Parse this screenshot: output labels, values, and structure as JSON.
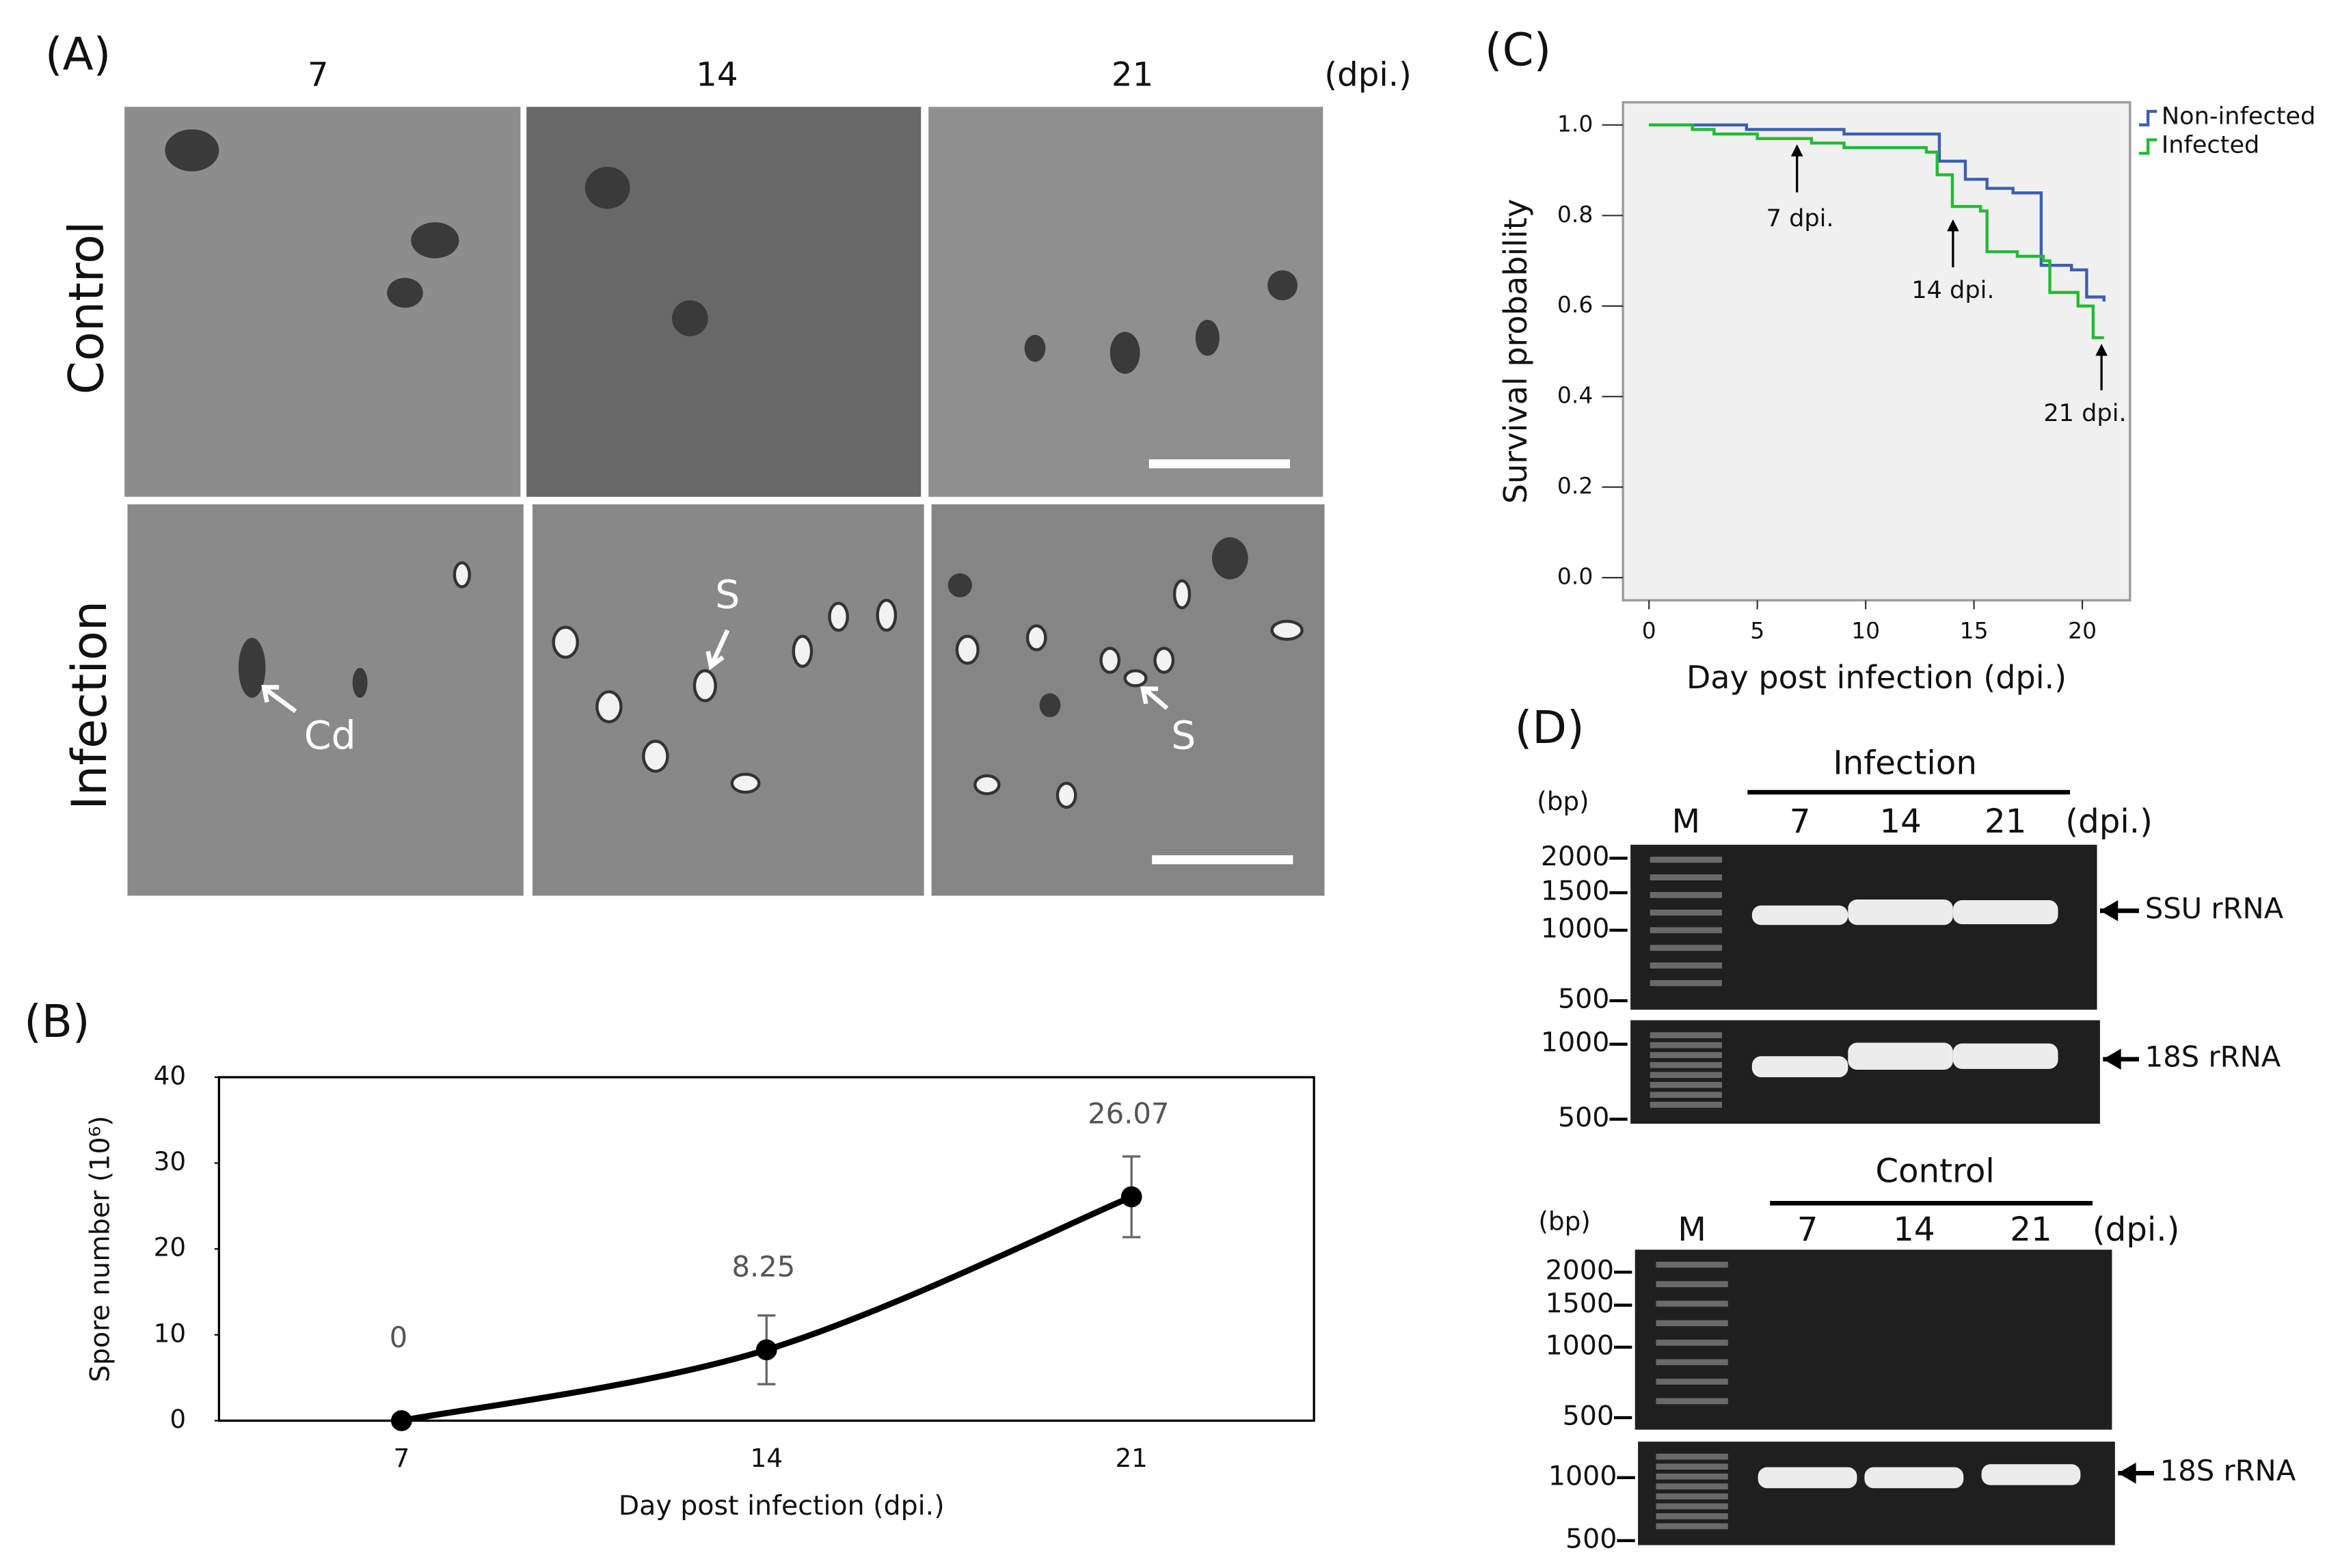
{
  "figure": {
    "panel_a": {
      "label": "(A)",
      "columns": [
        "7",
        "14",
        "21"
      ],
      "column_unit": "(dpi.)",
      "rows": [
        "Control",
        "Infection"
      ],
      "annotations": [
        "Cd",
        "S",
        "S"
      ]
    },
    "panel_d": {
      "label": "(D)",
      "gels": [
        {
          "title": "Infection",
          "unit": "(bp)",
          "lanes": [
            "M",
            "7",
            "14",
            "21"
          ],
          "lane_unit": "(dpi.)",
          "markers_top": [
            "2000",
            "1500",
            "1000",
            "500"
          ],
          "markers_bottom": [
            "1000",
            "500"
          ],
          "targets": [
            "SSU rRNA",
            "18S rRNA"
          ]
        },
        {
          "title": "Control",
          "unit": "(bp)",
          "lanes": [
            "M",
            "7",
            "14",
            "21"
          ],
          "lane_unit": "(dpi.)",
          "markers_top": [
            "2000",
            "1500",
            "1000",
            "500"
          ],
          "markers_bottom": [
            "1000",
            "500"
          ],
          "targets": [
            "18S rRNA"
          ]
        }
      ]
    }
  },
  "chart_data": [
    {
      "type": "line",
      "panel_label": "(B)",
      "x_label": "Day post infection (dpi.)",
      "y_label": "Spore number (10⁶)",
      "categories": [
        "7",
        "14",
        "21"
      ],
      "values": [
        0,
        8.25,
        26.07
      ],
      "errors": [
        0,
        4,
        4.7
      ],
      "color": "#000000",
      "ylim": [
        0,
        40
      ],
      "yticks": [
        0,
        10,
        20,
        30,
        40
      ],
      "grid": false
    },
    {
      "type": "step",
      "panel_label": "(C)",
      "x_label": "Day post infection (dpi.)",
      "y_label": "Survival probability",
      "xlim": [
        -1.2,
        22.2
      ],
      "ylim": [
        -0.05,
        1.05
      ],
      "xticks": [
        0,
        5,
        10,
        15,
        20
      ],
      "yticks": [
        {
          "value": 0,
          "label": "0.0"
        },
        0.2,
        0.4,
        0.6,
        0.8,
        {
          "value": 1,
          "label": "1.0"
        }
      ],
      "legend": "top-right",
      "grid": false,
      "annotations": [
        "7 dpi.",
        "14 dpi.",
        "21 dpi."
      ],
      "series": [
        {
          "name": "Non-infected",
          "color": "#3b5fb5",
          "x": [
            0,
            4.5,
            9,
            13.4,
            14.6,
            15.6,
            16.8,
            18.1,
            19.5,
            20.2,
            21
          ],
          "values": [
            1.0,
            0.99,
            0.98,
            0.92,
            0.88,
            0.86,
            0.85,
            0.69,
            0.68,
            0.62,
            0.61
          ]
        },
        {
          "name": "Infected",
          "color": "#22bb33",
          "x": [
            0,
            2,
            3,
            5,
            7.5,
            9,
            12.8,
            13.3,
            14,
            15.3,
            15.6,
            17,
            18.2,
            18.5,
            19.8,
            20.5,
            21
          ],
          "values": [
            1.0,
            0.99,
            0.98,
            0.97,
            0.96,
            0.95,
            0.94,
            0.89,
            0.82,
            0.81,
            0.72,
            0.71,
            0.7,
            0.63,
            0.6,
            0.53,
            0.53
          ]
        }
      ]
    }
  ]
}
